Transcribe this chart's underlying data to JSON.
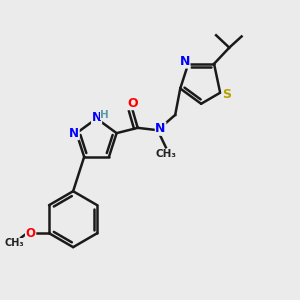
{
  "bg_color": "#ebebeb",
  "bond_color": "#1a1a1a",
  "bond_width": 1.8,
  "figsize": [
    3.0,
    3.0
  ],
  "dpi": 100,
  "xlim": [
    0,
    10
  ],
  "ylim": [
    0,
    10
  ]
}
